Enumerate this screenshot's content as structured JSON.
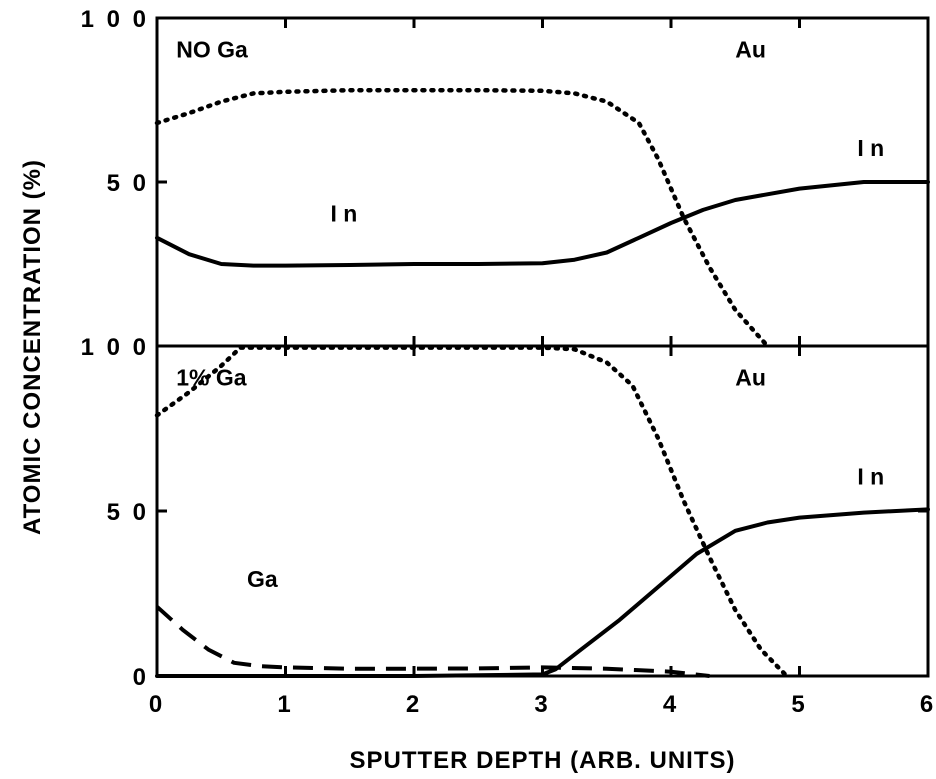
{
  "chart_data": [
    {
      "type": "line",
      "panel": "top",
      "xlabel": "SPUTTER DEPTH (ARB. UNITS)",
      "ylabel": "ATOMIC CONCENTRATION (%)",
      "xlim": [
        0,
        6
      ],
      "ylim": [
        0,
        100
      ],
      "x_ticks": [
        "0",
        "1",
        "2",
        "3",
        "4",
        "5",
        "6"
      ],
      "y_ticks": [
        "0",
        "5 0",
        "1 0 0"
      ],
      "grid": false,
      "legend": "none",
      "annotations": [
        {
          "text": "NO Ga",
          "x": 0.15,
          "y": 88
        },
        {
          "text": "Au",
          "x": 4.5,
          "y": 88
        },
        {
          "text": "I n",
          "x": 5.45,
          "y": 58
        },
        {
          "text": "I n",
          "x": 1.35,
          "y": 38
        }
      ],
      "series": [
        {
          "name": "In",
          "style": "solid",
          "color": "#000000",
          "x": [
            0,
            0.25,
            0.5,
            0.75,
            1,
            1.5,
            2,
            2.5,
            3,
            3.25,
            3.5,
            3.75,
            4,
            4.25,
            4.5,
            5,
            5.5,
            6
          ],
          "y": [
            33,
            28,
            25,
            24.5,
            24.5,
            24.7,
            25,
            25,
            25.2,
            26.3,
            28.5,
            33,
            37.5,
            41.5,
            44.5,
            48,
            50,
            50
          ]
        },
        {
          "name": "Au",
          "style": "dotted",
          "color": "#000000",
          "x": [
            0,
            0.25,
            0.5,
            0.75,
            1,
            1.5,
            2,
            2.5,
            3,
            3.25,
            3.5,
            3.75,
            3.9,
            4.1,
            4.3,
            4.5,
            4.75
          ],
          "y": [
            68,
            71,
            74.5,
            77,
            77.5,
            78,
            78,
            78,
            77.8,
            77,
            74.5,
            68,
            57,
            39,
            24,
            11,
            0
          ]
        }
      ]
    },
    {
      "type": "line",
      "panel": "bottom",
      "xlabel": "SPUTTER DEPTH (ARB. UNITS)",
      "ylabel": "ATOMIC CONCENTRATION (%)",
      "xlim": [
        0,
        6
      ],
      "ylim": [
        0,
        100
      ],
      "x_ticks": [
        "0",
        "1",
        "2",
        "3",
        "4",
        "5",
        "6"
      ],
      "y_ticks": [
        "0",
        "5 0",
        "1 0 0"
      ],
      "grid": false,
      "legend": "none",
      "annotations": [
        {
          "text": "1% Ga",
          "x": 0.15,
          "y": 88
        },
        {
          "text": "Au",
          "x": 4.5,
          "y": 88
        },
        {
          "text": "I n",
          "x": 5.45,
          "y": 58
        },
        {
          "text": "Ga",
          "x": 0.7,
          "y": 27
        }
      ],
      "series": [
        {
          "name": "In",
          "style": "solid",
          "color": "#000000",
          "x": [
            0,
            1,
            2,
            3,
            3.1,
            3.3,
            3.6,
            3.9,
            4.2,
            4.5,
            4.75,
            5,
            5.5,
            6
          ],
          "y": [
            0,
            0,
            0,
            0.5,
            2,
            8,
            17,
            27,
            37,
            44,
            46.5,
            48,
            49.5,
            50.5
          ]
        },
        {
          "name": "Au",
          "style": "dotted",
          "color": "#000000",
          "x": [
            0,
            0.25,
            0.5,
            0.65,
            1,
            1.5,
            2,
            2.5,
            3,
            3.25,
            3.5,
            3.7,
            3.9,
            4.1,
            4.3,
            4.5,
            4.7,
            4.9
          ],
          "y": [
            79,
            86,
            94,
            99.5,
            99.5,
            99.5,
            99.5,
            99.5,
            99.5,
            99,
            95,
            88,
            72,
            53,
            36,
            20,
            8,
            0
          ]
        },
        {
          "name": "Ga",
          "style": "dashed",
          "color": "#000000",
          "x": [
            0,
            0.2,
            0.4,
            0.6,
            0.8,
            1,
            1.5,
            2,
            2.5,
            3,
            3.5,
            4,
            4.3
          ],
          "y": [
            21,
            14,
            8,
            4,
            3,
            2.6,
            2.2,
            2.2,
            2.3,
            2.6,
            2.2,
            1.3,
            0
          ]
        }
      ]
    }
  ]
}
